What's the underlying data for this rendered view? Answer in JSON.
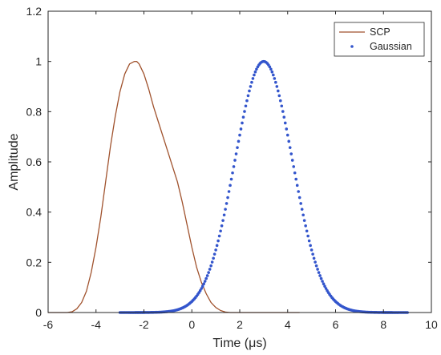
{
  "chart_data": {
    "type": "line",
    "xlabel": "Time (μs)",
    "ylabel": "Amplitude",
    "xlim": [
      -6,
      10
    ],
    "ylim": [
      0,
      1.2
    ],
    "xticks": [
      -6,
      -4,
      -2,
      0,
      2,
      4,
      6,
      8,
      10
    ],
    "yticks": [
      0,
      0.2,
      0.4,
      0.6,
      0.8,
      1,
      1.2
    ],
    "grid": false,
    "legend_position": "top-right",
    "series": [
      {
        "name": "SCP",
        "style": "line",
        "color": "#a0522d",
        "x": [
          -6.0,
          -5.2,
          -5.0,
          -4.8,
          -4.6,
          -4.4,
          -4.2,
          -4.0,
          -3.8,
          -3.6,
          -3.4,
          -3.2,
          -3.0,
          -2.8,
          -2.6,
          -2.4,
          -2.3,
          -2.2,
          -2.0,
          -1.8,
          -1.6,
          -1.4,
          -1.2,
          -1.0,
          -0.8,
          -0.6,
          -0.4,
          -0.2,
          0.0,
          0.2,
          0.4,
          0.6,
          0.8,
          1.0,
          1.2,
          1.4,
          1.6,
          4.5
        ],
        "y": [
          0.0,
          0.0,
          0.003,
          0.015,
          0.04,
          0.085,
          0.16,
          0.26,
          0.38,
          0.52,
          0.66,
          0.78,
          0.88,
          0.95,
          0.99,
          1.0,
          1.0,
          0.99,
          0.95,
          0.89,
          0.82,
          0.76,
          0.7,
          0.64,
          0.58,
          0.52,
          0.44,
          0.35,
          0.26,
          0.18,
          0.12,
          0.075,
          0.04,
          0.02,
          0.008,
          0.002,
          0.0,
          0.0
        ]
      },
      {
        "name": "Gaussian",
        "style": "dots",
        "color": "#3355cc",
        "x_start": -3,
        "x_end": 9,
        "center": 3,
        "sigma": 1.2,
        "amplitude": 1,
        "point_count": 241
      }
    ]
  }
}
